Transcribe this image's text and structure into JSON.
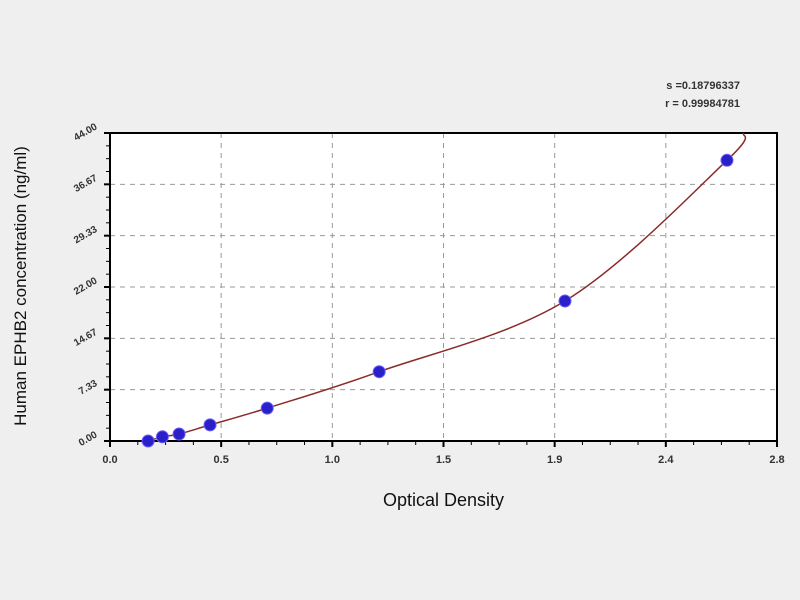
{
  "chart_data": {
    "type": "scatter",
    "title": "",
    "xlabel": "Optical Density",
    "ylabel": "Human EPHB2  concentration (ng/ml)",
    "xlim": [
      0,
      2.8
    ],
    "ylim": [
      0,
      44
    ],
    "x_tick_labels": [
      "0.0",
      "0.5",
      "1.0",
      "1.5",
      "1.9",
      "2.4",
      "2.8"
    ],
    "y_tick_labels": [
      "0.00",
      "7.33",
      "14.67",
      "22.00",
      "29.33",
      "36.67",
      "44.00"
    ],
    "grid": true,
    "points": {
      "x": [
        0.16,
        0.22,
        0.29,
        0.42,
        0.66,
        1.13,
        1.91,
        2.59
      ],
      "y": [
        0.0,
        0.6,
        1.0,
        2.3,
        4.7,
        9.9,
        20.0,
        40.1
      ]
    },
    "fit_curve_end": {
      "x": 2.66,
      "y": 44
    },
    "stats": {
      "s": "s =0.18796337",
      "r": "r = 0.99984781"
    },
    "colors": {
      "points": "#2a1fc8",
      "curve": "#8b2a2a",
      "grid": "#999999"
    }
  }
}
